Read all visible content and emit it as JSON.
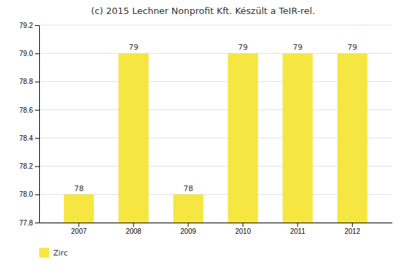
{
  "chart_data": {
    "type": "bar",
    "title": "(c) 2015 Lechner Nonprofit Kft. Készült a TeIR-rel.",
    "categories": [
      "2007",
      "2008",
      "2009",
      "2010",
      "2011",
      "2012"
    ],
    "series": [
      {
        "name": "Zirc",
        "color": "#F5E642",
        "values": [
          78,
          79,
          78,
          79,
          79,
          79
        ]
      }
    ],
    "ylim": [
      77.8,
      79.2
    ],
    "yticks": [
      77.8,
      {
        "value": 78,
        "label": "78.0"
      },
      78.2,
      78.4,
      78.6,
      78.8,
      {
        "value": 79,
        "label": "79.0"
      },
      79.2
    ],
    "grid": true,
    "data_labels": true,
    "legend": "below"
  }
}
